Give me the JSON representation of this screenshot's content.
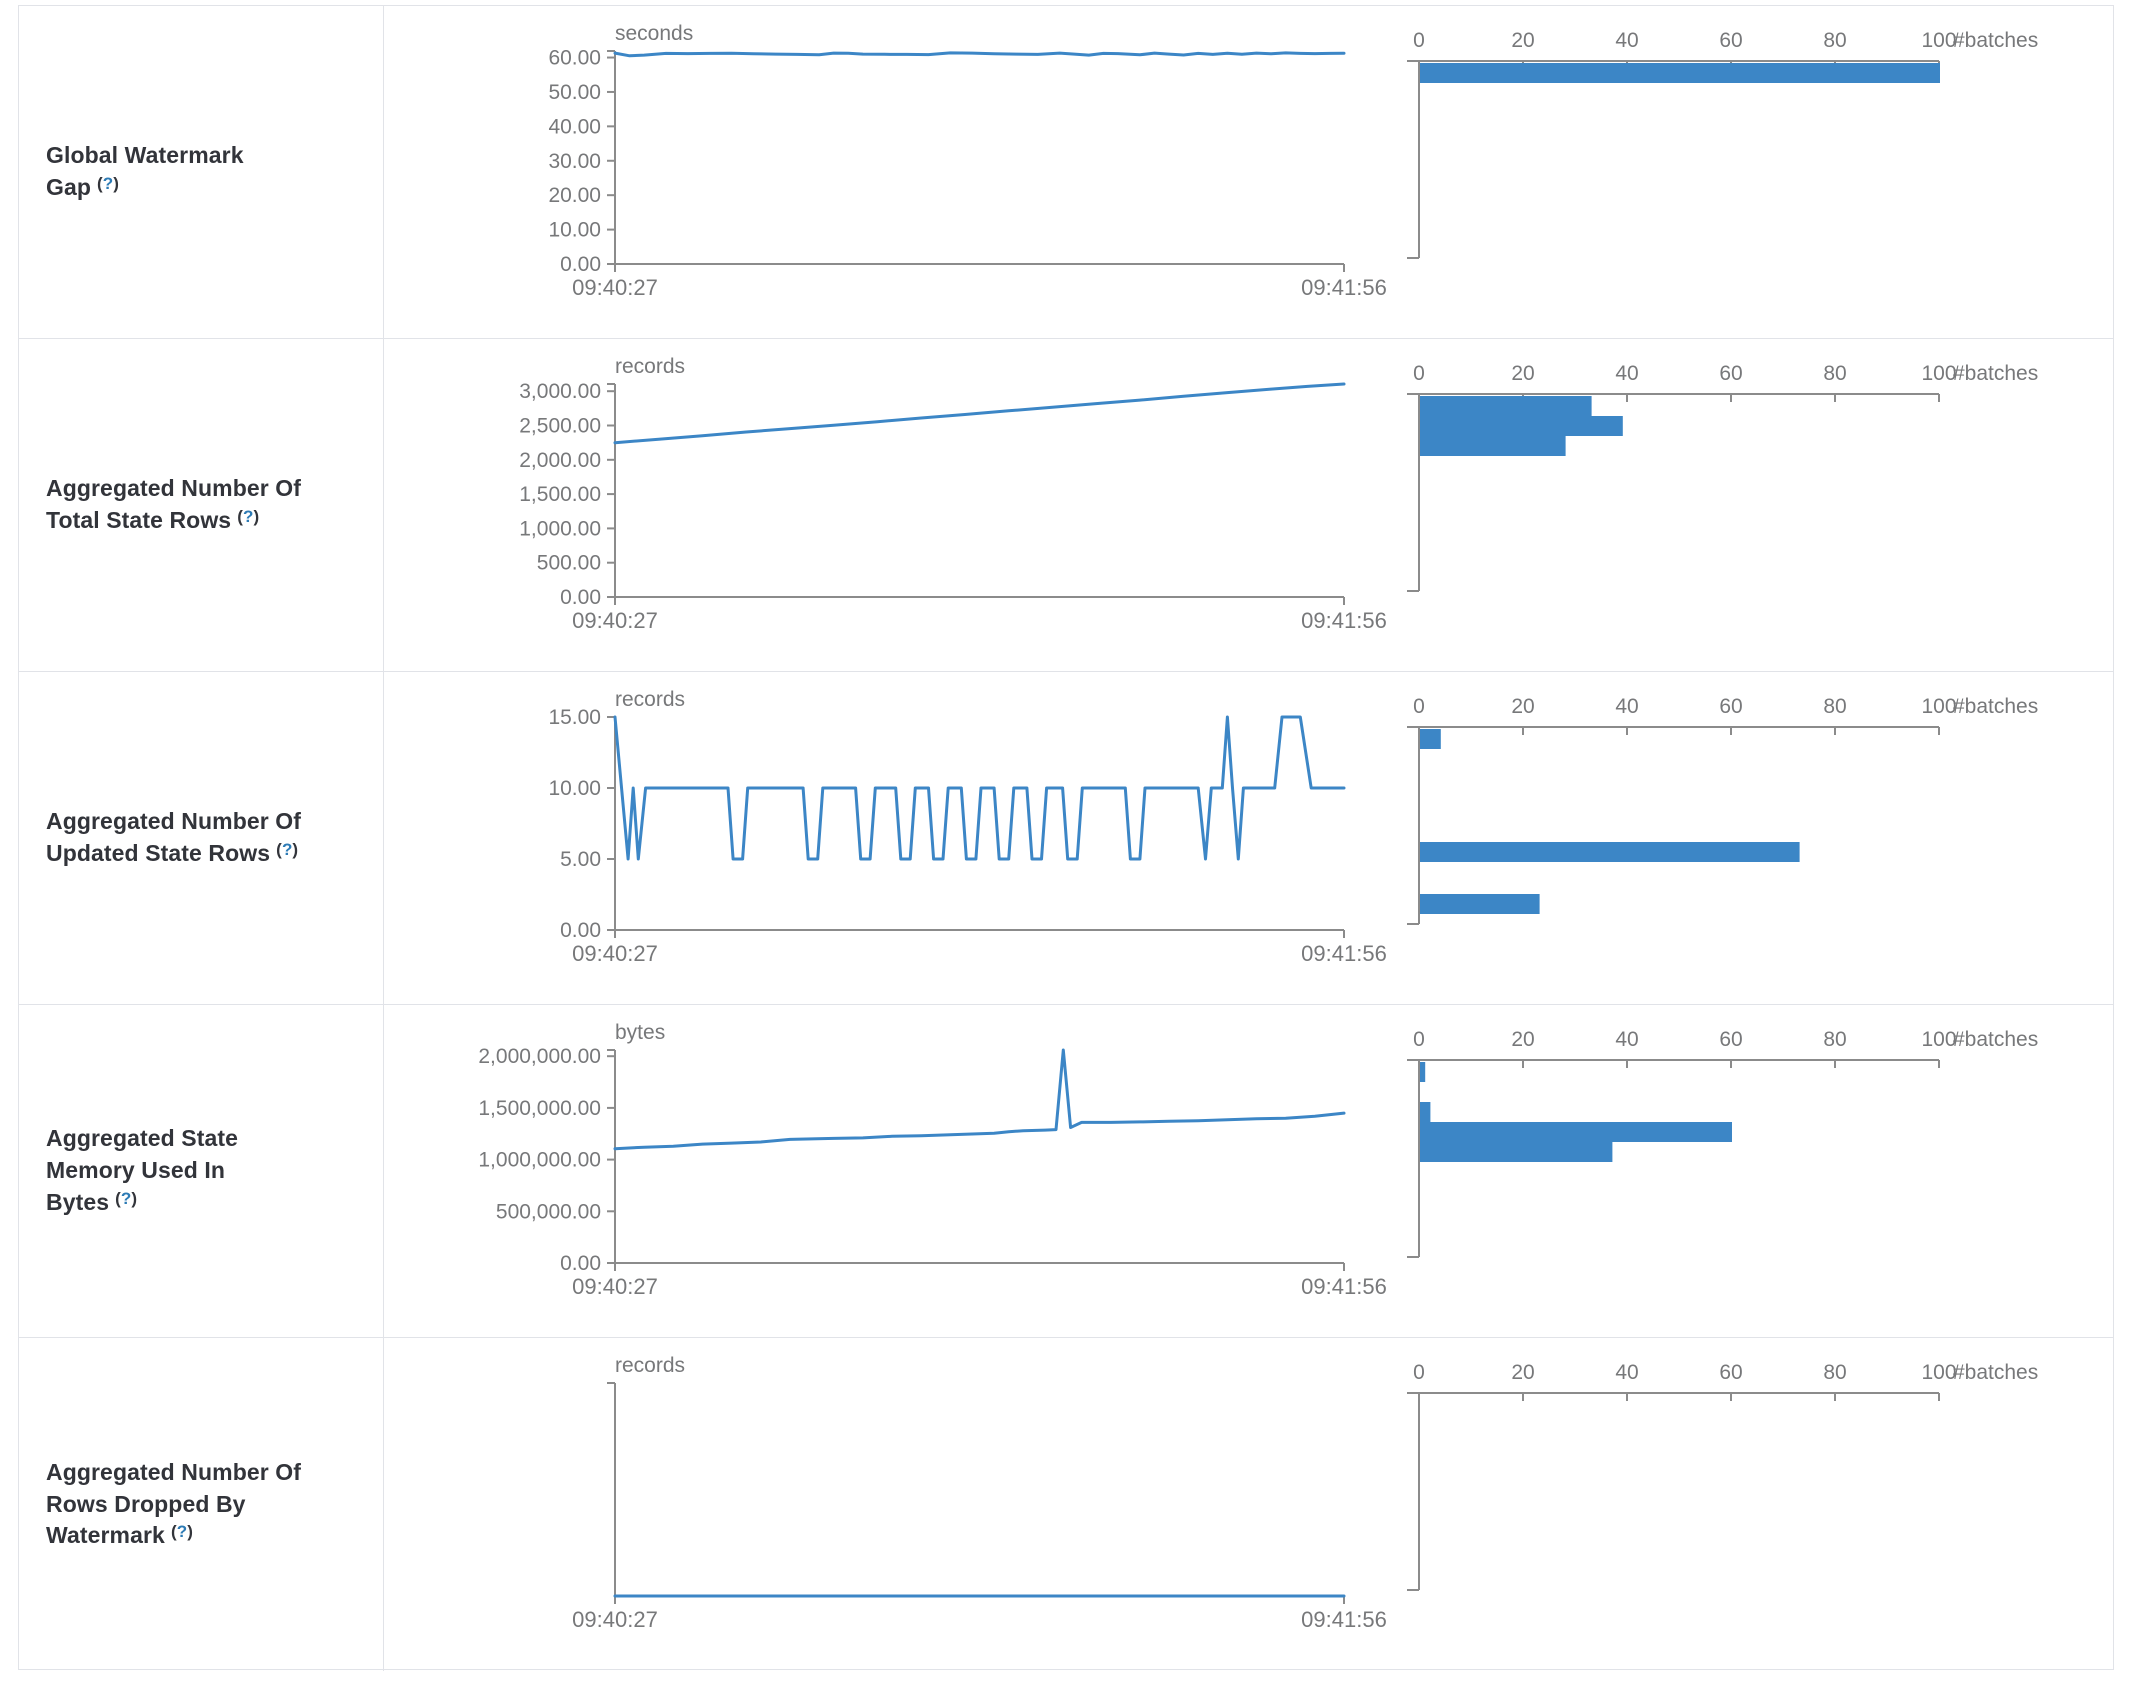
{
  "colors": {
    "accent_blue": "#3c86c6",
    "axis_gray": "#8b8b8b",
    "text_gray": "#77787a",
    "label_dark": "#32343a",
    "help_blue": "#2d7bb5",
    "border_gray": "#e1e3e8"
  },
  "histogram_axis": {
    "tick_labels": [
      "0",
      "20",
      "40",
      "60",
      "80",
      "100"
    ],
    "tick_values": [
      0,
      20,
      40,
      60,
      80,
      100
    ],
    "axis_label": "#batches",
    "max": 100
  },
  "timeline_axis": {
    "x_start_label": "09:40:27",
    "x_end_label": "09:41:56"
  },
  "rows": [
    {
      "label": {
        "title": "Global Watermark Gap",
        "help": "(?)"
      },
      "timeline": {
        "unit": "seconds",
        "y_tick_values": [
          0,
          10,
          20,
          30,
          40,
          50,
          60
        ],
        "y_tick_labels": [
          "0.00",
          "10.00",
          "20.00",
          "30.00",
          "40.00",
          "50.00",
          "60.00"
        ],
        "y_max": 61.9,
        "points": [
          [
            0,
            61.3
          ],
          [
            0.02,
            60.5
          ],
          [
            0.04,
            60.7
          ],
          [
            0.07,
            61.2
          ],
          [
            0.1,
            61.15
          ],
          [
            0.13,
            61.2
          ],
          [
            0.16,
            61.25
          ],
          [
            0.19,
            61.1
          ],
          [
            0.22,
            61.0
          ],
          [
            0.25,
            60.9
          ],
          [
            0.28,
            60.8
          ],
          [
            0.3,
            61.3
          ],
          [
            0.32,
            61.25
          ],
          [
            0.34,
            61.0
          ],
          [
            0.37,
            60.95
          ],
          [
            0.4,
            60.9
          ],
          [
            0.43,
            60.85
          ],
          [
            0.46,
            61.35
          ],
          [
            0.49,
            61.3
          ],
          [
            0.52,
            61.1
          ],
          [
            0.55,
            61.0
          ],
          [
            0.58,
            60.9
          ],
          [
            0.61,
            61.3
          ],
          [
            0.63,
            61.0
          ],
          [
            0.65,
            60.7
          ],
          [
            0.67,
            61.2
          ],
          [
            0.69,
            61.15
          ],
          [
            0.72,
            60.8
          ],
          [
            0.74,
            61.3
          ],
          [
            0.76,
            61.0
          ],
          [
            0.78,
            60.75
          ],
          [
            0.8,
            61.2
          ],
          [
            0.82,
            60.9
          ],
          [
            0.84,
            61.25
          ],
          [
            0.86,
            60.95
          ],
          [
            0.88,
            61.3
          ],
          [
            0.9,
            61.1
          ],
          [
            0.92,
            61.35
          ],
          [
            0.94,
            61.2
          ],
          [
            0.96,
            61.15
          ],
          [
            0.98,
            61.2
          ],
          [
            1,
            61.25
          ]
        ]
      },
      "histogram": {
        "bars": [
          {
            "bin": 0,
            "count": 100
          }
        ]
      }
    },
    {
      "label": {
        "title": "Aggregated Number Of Total State Rows",
        "help": "(?)"
      },
      "timeline": {
        "unit": "records",
        "y_tick_values": [
          0,
          500,
          1000,
          1500,
          2000,
          2500,
          3000
        ],
        "y_tick_labels": [
          "0.00",
          "500.00",
          "1,000.00",
          "1,500.00",
          "2,000.00",
          "2,500.00",
          "3,000.00"
        ],
        "y_max": 3105,
        "points": [
          [
            0,
            2250
          ],
          [
            0.06,
            2300
          ],
          [
            0.12,
            2350
          ],
          [
            0.18,
            2405
          ],
          [
            0.24,
            2455
          ],
          [
            0.3,
            2505
          ],
          [
            0.36,
            2555
          ],
          [
            0.42,
            2610
          ],
          [
            0.48,
            2660
          ],
          [
            0.54,
            2715
          ],
          [
            0.6,
            2765
          ],
          [
            0.66,
            2820
          ],
          [
            0.72,
            2870
          ],
          [
            0.78,
            2925
          ],
          [
            0.84,
            2980
          ],
          [
            0.9,
            3030
          ],
          [
            0.95,
            3070
          ],
          [
            1,
            3105
          ]
        ]
      },
      "histogram": {
        "bars": [
          {
            "bin": 0,
            "count": 33
          },
          {
            "bin": 1,
            "count": 39
          },
          {
            "bin": 2,
            "count": 28
          }
        ]
      }
    },
    {
      "label": {
        "title": "Aggregated Number Of Updated State Rows",
        "help": "(?)"
      },
      "timeline": {
        "unit": "records",
        "y_tick_values": [
          0,
          5,
          10,
          15
        ],
        "y_tick_labels": [
          "0.00",
          "5.00",
          "10.00",
          "15.00"
        ],
        "y_max": 15,
        "points": [
          [
            0,
            15
          ],
          [
            0.018,
            5
          ],
          [
            0.025,
            10
          ],
          [
            0.032,
            5
          ],
          [
            0.042,
            10
          ],
          [
            0.155,
            10
          ],
          [
            0.162,
            5
          ],
          [
            0.175,
            5
          ],
          [
            0.182,
            10
          ],
          [
            0.258,
            10
          ],
          [
            0.265,
            5
          ],
          [
            0.278,
            5
          ],
          [
            0.285,
            10
          ],
          [
            0.33,
            10
          ],
          [
            0.337,
            5
          ],
          [
            0.35,
            5
          ],
          [
            0.357,
            10
          ],
          [
            0.385,
            10
          ],
          [
            0.392,
            5
          ],
          [
            0.405,
            5
          ],
          [
            0.412,
            10
          ],
          [
            0.43,
            10
          ],
          [
            0.437,
            5
          ],
          [
            0.45,
            5
          ],
          [
            0.457,
            10
          ],
          [
            0.475,
            10
          ],
          [
            0.482,
            5
          ],
          [
            0.495,
            5
          ],
          [
            0.502,
            10
          ],
          [
            0.52,
            10
          ],
          [
            0.527,
            5
          ],
          [
            0.54,
            5
          ],
          [
            0.547,
            10
          ],
          [
            0.565,
            10
          ],
          [
            0.572,
            5
          ],
          [
            0.585,
            5
          ],
          [
            0.592,
            10
          ],
          [
            0.614,
            10
          ],
          [
            0.621,
            5
          ],
          [
            0.634,
            5
          ],
          [
            0.641,
            10
          ],
          [
            0.7,
            10
          ],
          [
            0.707,
            5
          ],
          [
            0.72,
            5
          ],
          [
            0.727,
            10
          ],
          [
            0.8,
            10
          ],
          [
            0.81,
            5
          ],
          [
            0.818,
            10
          ],
          [
            0.833,
            10
          ],
          [
            0.84,
            15
          ],
          [
            0.847,
            10
          ],
          [
            0.855,
            5
          ],
          [
            0.862,
            10
          ],
          [
            0.905,
            10
          ],
          [
            0.915,
            15
          ],
          [
            0.94,
            15
          ],
          [
            0.955,
            10
          ],
          [
            1,
            10
          ]
        ]
      },
      "histogram": {
        "bars": [
          {
            "bin": 0,
            "count": 4
          },
          {
            "bin": 5.65,
            "count": 73
          },
          {
            "bin": 8.25,
            "count": 23
          }
        ]
      }
    },
    {
      "label": {
        "title": "Aggregated State Memory Used In Bytes",
        "help": "(?)"
      },
      "timeline": {
        "unit": "bytes",
        "y_tick_values": [
          0,
          500000,
          1000000,
          1500000,
          2000000
        ],
        "y_tick_labels": [
          "0.00",
          "500,000.00",
          "1,000,000.00",
          "1,500,000.00",
          "2,000,000.00"
        ],
        "y_max": 2060000,
        "points": [
          [
            0,
            1105000
          ],
          [
            0.04,
            1120000
          ],
          [
            0.08,
            1130000
          ],
          [
            0.12,
            1150000
          ],
          [
            0.16,
            1160000
          ],
          [
            0.2,
            1170000
          ],
          [
            0.24,
            1195000
          ],
          [
            0.27,
            1200000
          ],
          [
            0.3,
            1205000
          ],
          [
            0.34,
            1210000
          ],
          [
            0.38,
            1225000
          ],
          [
            0.42,
            1230000
          ],
          [
            0.46,
            1240000
          ],
          [
            0.5,
            1250000
          ],
          [
            0.52,
            1255000
          ],
          [
            0.54,
            1270000
          ],
          [
            0.56,
            1280000
          ],
          [
            0.59,
            1285000
          ],
          [
            0.605,
            1290000
          ],
          [
            0.615,
            2060000
          ],
          [
            0.625,
            1310000
          ],
          [
            0.64,
            1360000
          ],
          [
            0.68,
            1360000
          ],
          [
            0.72,
            1365000
          ],
          [
            0.76,
            1370000
          ],
          [
            0.8,
            1375000
          ],
          [
            0.84,
            1385000
          ],
          [
            0.88,
            1395000
          ],
          [
            0.92,
            1400000
          ],
          [
            0.96,
            1420000
          ],
          [
            1,
            1450000
          ]
        ]
      },
      "histogram": {
        "bars": [
          {
            "bin": 0,
            "count": 1
          },
          {
            "bin": 2,
            "count": 2
          },
          {
            "bin": 3,
            "count": 60
          },
          {
            "bin": 4,
            "count": 37
          }
        ]
      }
    },
    {
      "label": {
        "title": "Aggregated Number Of Rows Dropped By Watermark",
        "help": "(?)"
      },
      "timeline": {
        "unit": "records",
        "y_tick_values": [],
        "y_tick_labels": [],
        "y_max": 0,
        "points": [
          [
            0,
            0
          ],
          [
            1,
            0
          ]
        ]
      },
      "histogram": {
        "bars": []
      }
    }
  ]
}
